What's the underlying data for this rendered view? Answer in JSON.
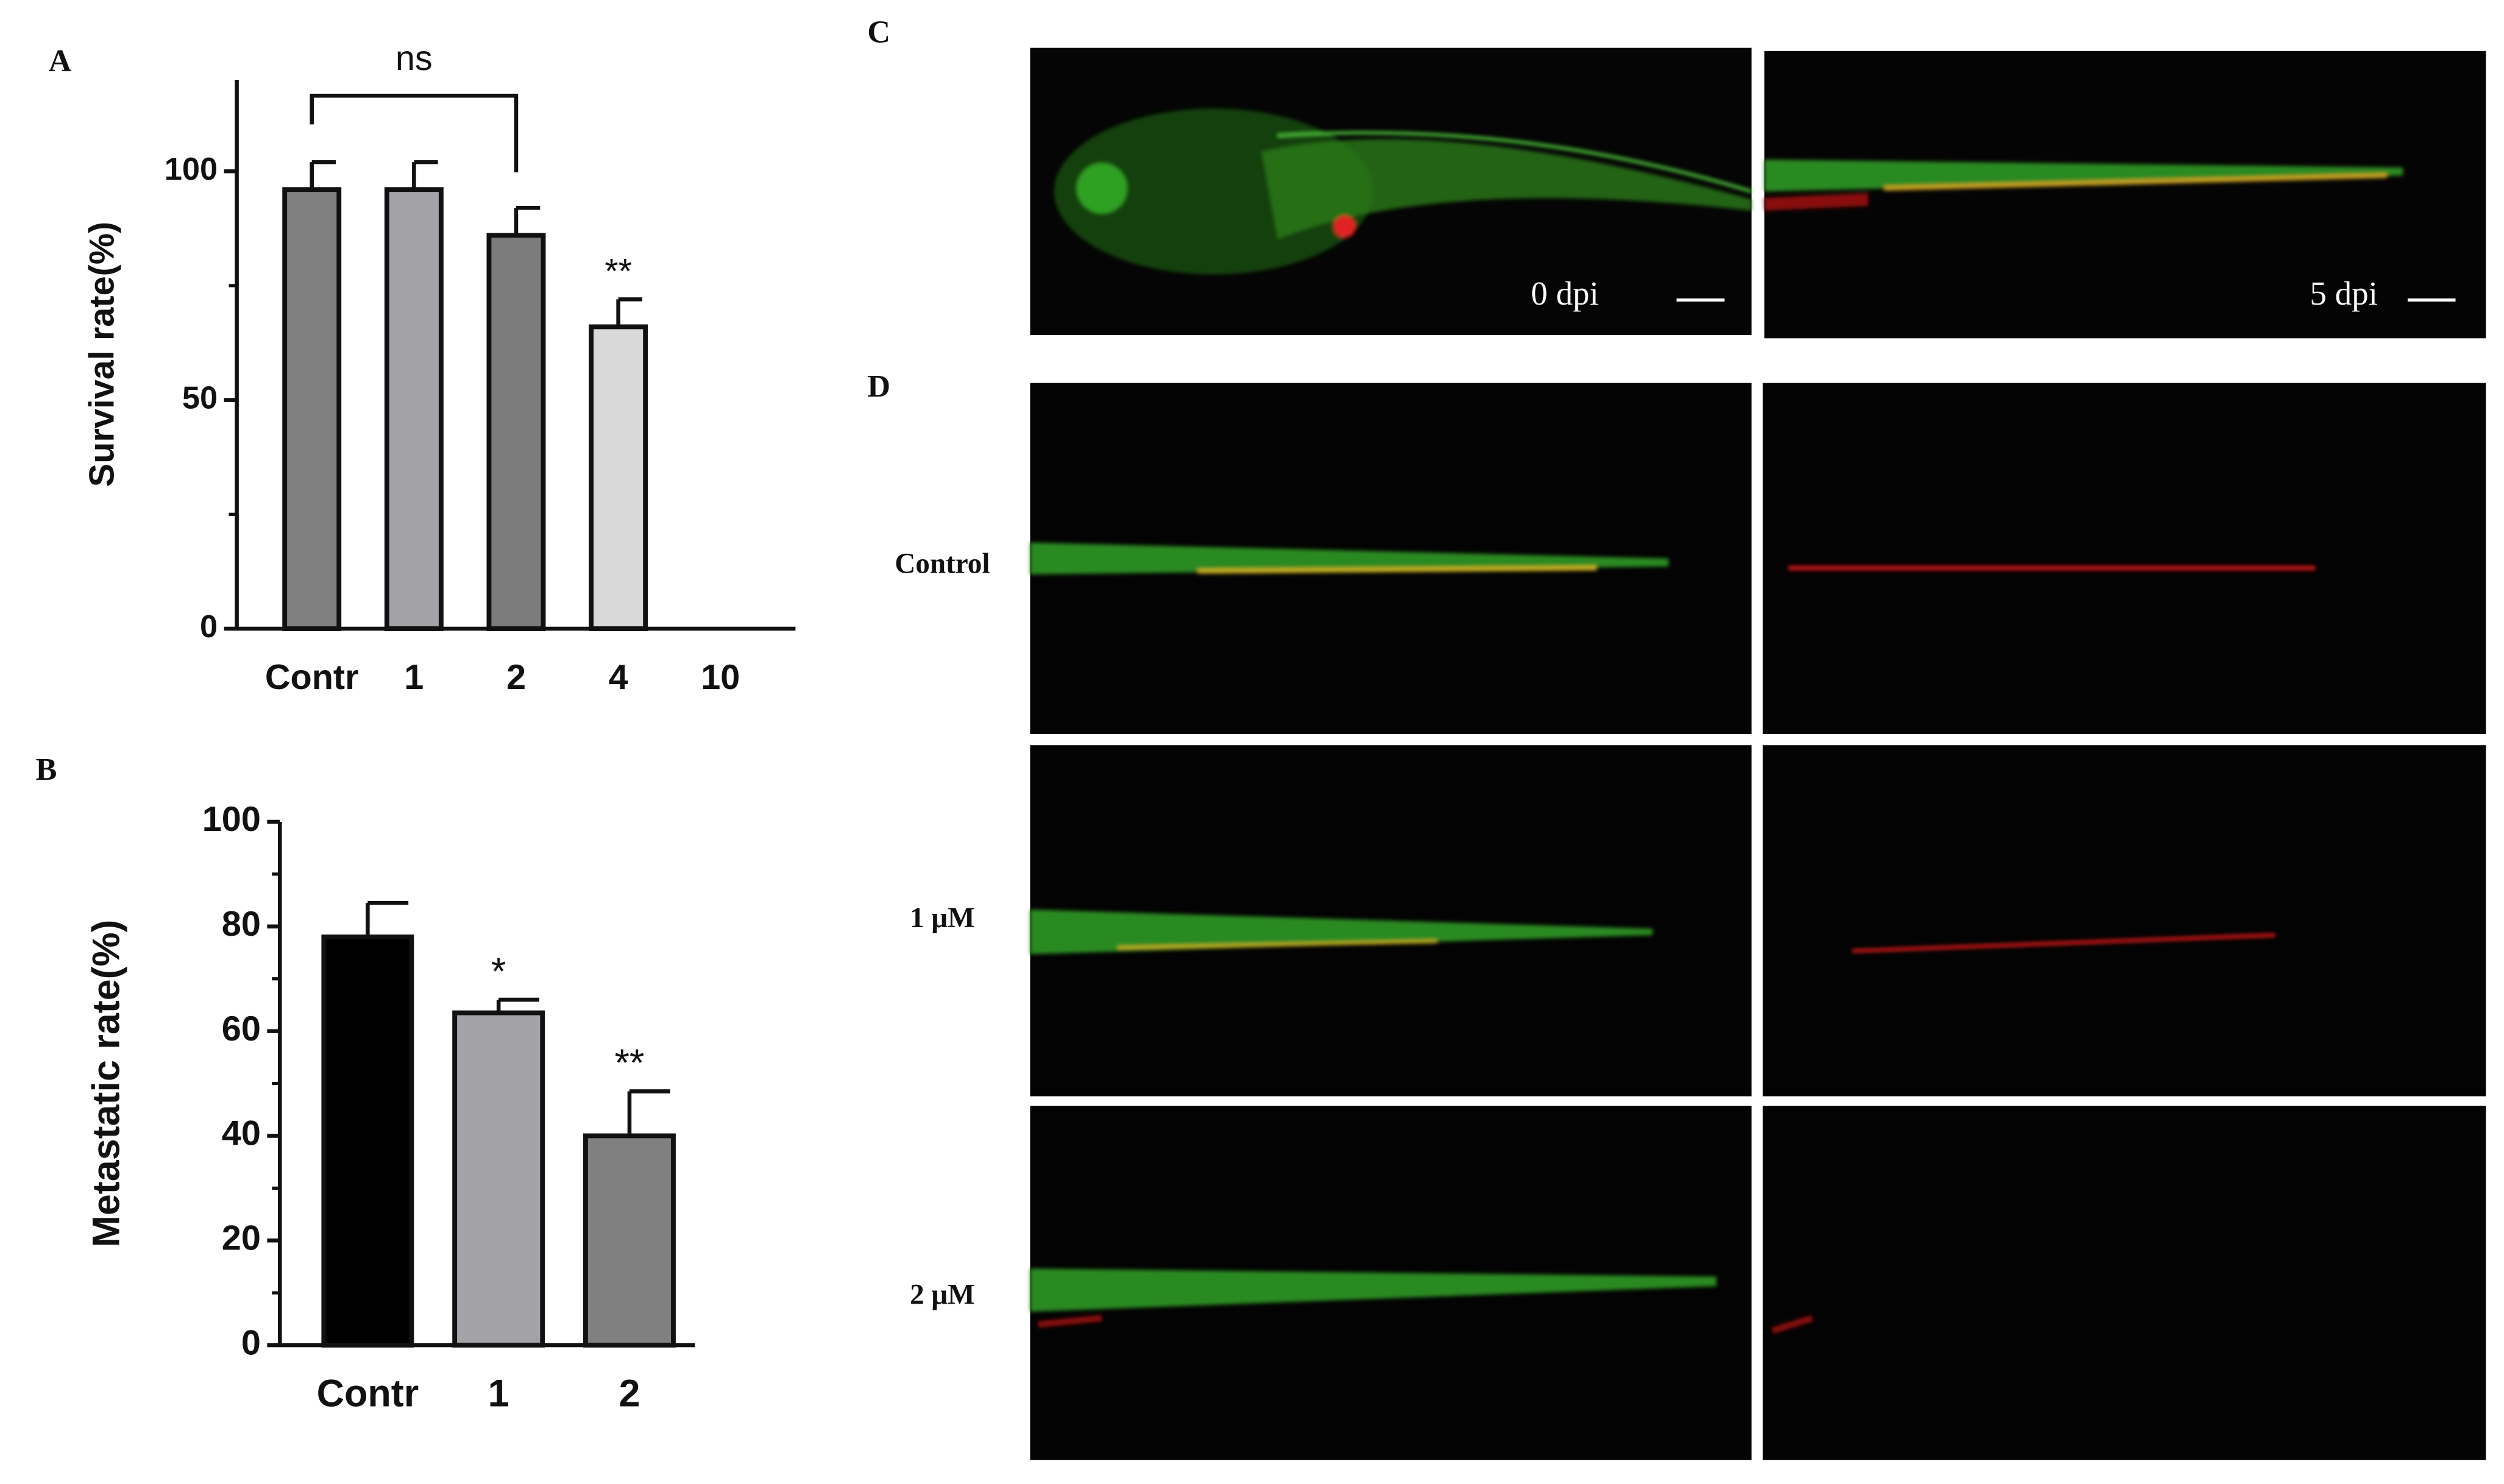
{
  "chart_data": [
    {
      "type": "bar",
      "panel": "A",
      "y_label": "Survival rate(%)",
      "categories": [
        "Contr",
        "1",
        "2",
        "4",
        "10"
      ],
      "series": [
        {
          "values": [
            96,
            96,
            86,
            66,
            0
          ],
          "errors": [
            6,
            6,
            6,
            6,
            null
          ],
          "colors": [
            "#808080",
            "#a3a3a7",
            "#7c7c7c",
            "#d9d9d9",
            "#d9d9d9"
          ]
        }
      ],
      "significance": [
        null,
        null,
        null,
        "**",
        null
      ],
      "bracket_label": "ns",
      "ylim": [
        0,
        120
      ],
      "yticks": [
        0,
        50,
        100
      ]
    },
    {
      "type": "bar",
      "panel": "B",
      "y_label": "Metastatic rate(%)",
      "categories": [
        "Contr",
        "1",
        "2"
      ],
      "series": [
        {
          "values": [
            78,
            63.5,
            40
          ],
          "errors": [
            6.5,
            2.5,
            8.5
          ],
          "colors": [
            "#000000",
            "#a3a3a7",
            "#808080"
          ]
        }
      ],
      "significance": [
        null,
        "*",
        "**"
      ],
      "ylim": [
        0,
        100
      ],
      "yticks": [
        0,
        20,
        40,
        60,
        80,
        100
      ]
    }
  ],
  "images": {
    "panels": [
      "C",
      "D"
    ],
    "time_labels": [
      "0 dpi",
      "5 dpi"
    ],
    "row_labels": [
      "Control",
      "1 μM",
      "2 μM"
    ]
  }
}
